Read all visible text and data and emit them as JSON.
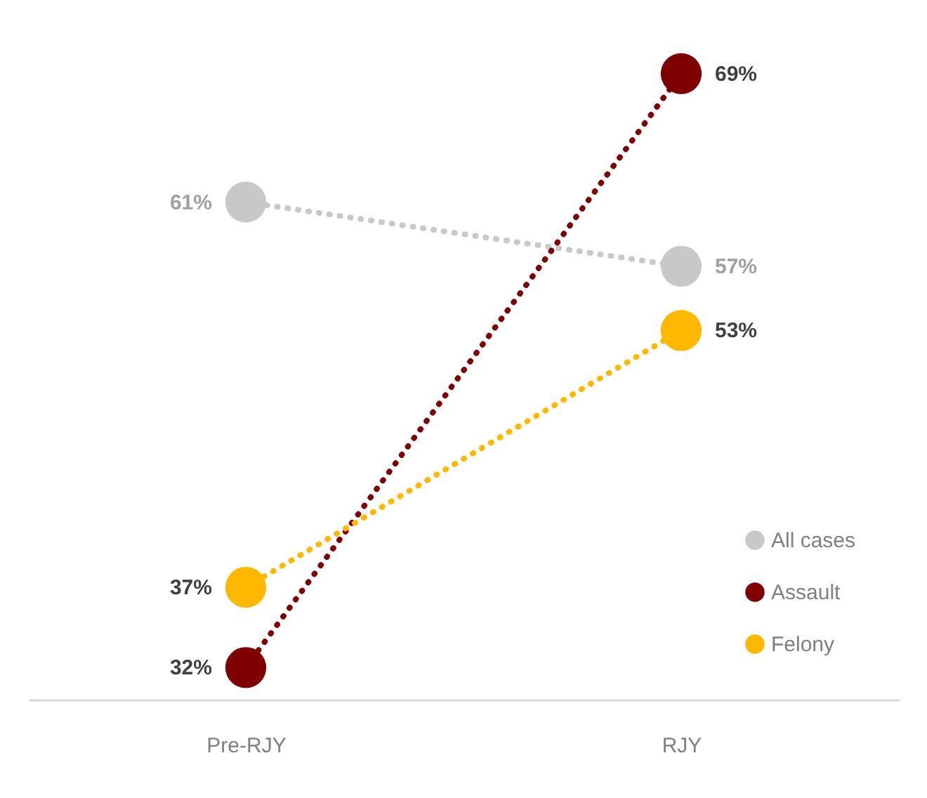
{
  "chart_data": {
    "type": "line",
    "categories": [
      "Pre-RJY",
      "RJY"
    ],
    "series": [
      {
        "name": "All cases",
        "color": "#c8c8c8",
        "values": [
          61,
          57
        ],
        "value_labels": [
          "61%",
          "57%"
        ]
      },
      {
        "name": "Assault",
        "color": "#7f0000",
        "values": [
          32,
          69
        ],
        "value_labels": [
          "32%",
          "69%"
        ]
      },
      {
        "name": "Felony",
        "color": "#ffb800",
        "values": [
          37,
          53
        ],
        "value_labels": [
          "37%",
          "53%"
        ]
      }
    ],
    "tick_labels": "x",
    "marker": "circle",
    "line_style": "dotted",
    "legend": "bottom right"
  }
}
